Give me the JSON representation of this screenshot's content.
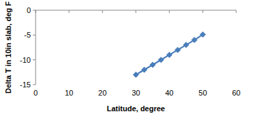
{
  "chart_data": {
    "type": "line",
    "x_label": "Latitude, degree",
    "y_label": "Delta T in 10in slab, deg F",
    "series": [
      {
        "name": null,
        "color": "#4a7ebb",
        "marker": "diamond",
        "line_style": "solid",
        "x": [
          30,
          32.5,
          35,
          37.5,
          40,
          42.5,
          45,
          47.5,
          50
        ],
        "values": [
          -13,
          -12,
          -11,
          -10,
          -9,
          -8,
          -7,
          -6,
          -4.9
        ]
      }
    ],
    "xlim": [
      0,
      60
    ],
    "xticks": [
      0,
      10,
      20,
      30,
      40,
      50,
      60
    ],
    "ylim": [
      -15,
      0
    ],
    "yticks": [
      -15,
      -10,
      -5,
      0
    ],
    "grid": false
  }
}
